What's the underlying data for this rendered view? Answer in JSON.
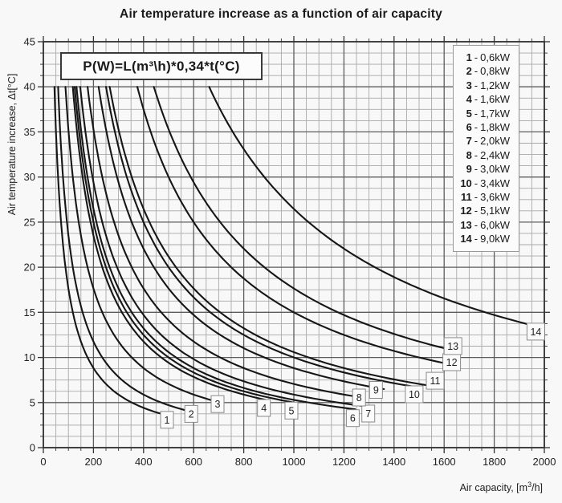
{
  "title": "Air temperature increase as a function of air capacity",
  "formula": "P(W)=L(m³\\h)*0,34*t(°C)",
  "chart_data": {
    "type": "line",
    "title": "Air temperature increase as a function of air capacity",
    "xlabel": "Air capacity, [m³/h]",
    "xlabel_parts": {
      "pre": "Air capacity, [m",
      "sup": "3",
      "post": "/h]"
    },
    "ylabel": "Air temperature increase, Δt[°C]",
    "xlim": [
      0,
      2000
    ],
    "ylim": [
      0,
      45
    ],
    "x_ticks": [
      0,
      200,
      400,
      600,
      800,
      1000,
      1200,
      1400,
      1600,
      1800,
      2000
    ],
    "y_ticks": [
      0,
      5,
      10,
      15,
      20,
      25,
      30,
      35,
      40,
      45
    ],
    "x_major_step": 200,
    "x_minor_step": 50,
    "y_major_step": 5,
    "y_minor_step": 1.25,
    "grid": true,
    "legend_position": "top-right",
    "relation": "dt_degC = power_kw*1000/(0.34*L_m3h)",
    "dt_start": 40,
    "series": [
      {
        "label": "1",
        "power_kw": 0.6,
        "power_label": "0,6",
        "unit": "kW",
        "L_end": 500,
        "label_offset": [
          -2,
          5
        ]
      },
      {
        "label": "2",
        "power_kw": 0.8,
        "power_label": "0,8",
        "unit": "kW",
        "L_end": 600,
        "label_offset": [
          -3,
          2
        ]
      },
      {
        "label": "3",
        "power_kw": 1.2,
        "power_label": "1,2",
        "unit": "kW",
        "L_end": 705,
        "label_offset": [
          -3,
          2
        ]
      },
      {
        "label": "4",
        "power_kw": 1.6,
        "power_label": "1,6",
        "unit": "kW",
        "L_end": 890,
        "label_offset": [
          -3,
          10
        ]
      },
      {
        "label": "5",
        "power_kw": 1.7,
        "power_label": "1,7",
        "unit": "kW",
        "L_end": 1000,
        "label_offset": [
          -3,
          10
        ]
      },
      {
        "label": "6",
        "power_kw": 1.8,
        "power_label": "1,8",
        "unit": "kW",
        "L_end": 1245,
        "label_offset": [
          -3,
          11
        ]
      },
      {
        "label": "7",
        "power_kw": 2.0,
        "power_label": "2,0",
        "unit": "kW",
        "L_end": 1310,
        "label_offset": [
          -4,
          8
        ]
      },
      {
        "label": "8",
        "power_kw": 2.4,
        "power_label": "2,4",
        "unit": "kW",
        "L_end": 1270,
        "label_offset": [
          -3,
          0
        ]
      },
      {
        "label": "9",
        "power_kw": 3.0,
        "power_label": "3,0",
        "unit": "kW",
        "L_end": 1360,
        "label_offset": [
          -10,
          1
        ]
      },
      {
        "label": "10",
        "power_kw": 3.4,
        "power_label": "3,4",
        "unit": "kW",
        "L_end": 1490,
        "label_offset": [
          -3,
          9
        ]
      },
      {
        "label": "11",
        "power_kw": 3.6,
        "power_label": "3,6",
        "unit": "kW",
        "L_end": 1580,
        "label_offset": [
          -5,
          -8
        ]
      },
      {
        "label": "12",
        "power_kw": 5.1,
        "power_label": "5,1",
        "unit": "kW",
        "L_end": 1630,
        "label_offset": [
          0,
          -3
        ]
      },
      {
        "label": "13",
        "power_kw": 6.0,
        "power_label": "6,0",
        "unit": "kW",
        "L_end": 1645,
        "label_offset": [
          -3,
          -6
        ]
      },
      {
        "label": "14",
        "power_kw": 9.0,
        "power_label": "9,0",
        "unit": "kW",
        "L_end": 1950,
        "label_offset": [
          5,
          8
        ]
      }
    ],
    "colors": {
      "curve": "#161616",
      "grid_minor": "#a9a9a9",
      "grid_major": "#5c5c5c",
      "frame": "#333333",
      "background": "#f8f8f8",
      "label_box_bg": "#fbfbfb",
      "label_box_border": "#8a8a8a",
      "text": "#222222"
    }
  }
}
